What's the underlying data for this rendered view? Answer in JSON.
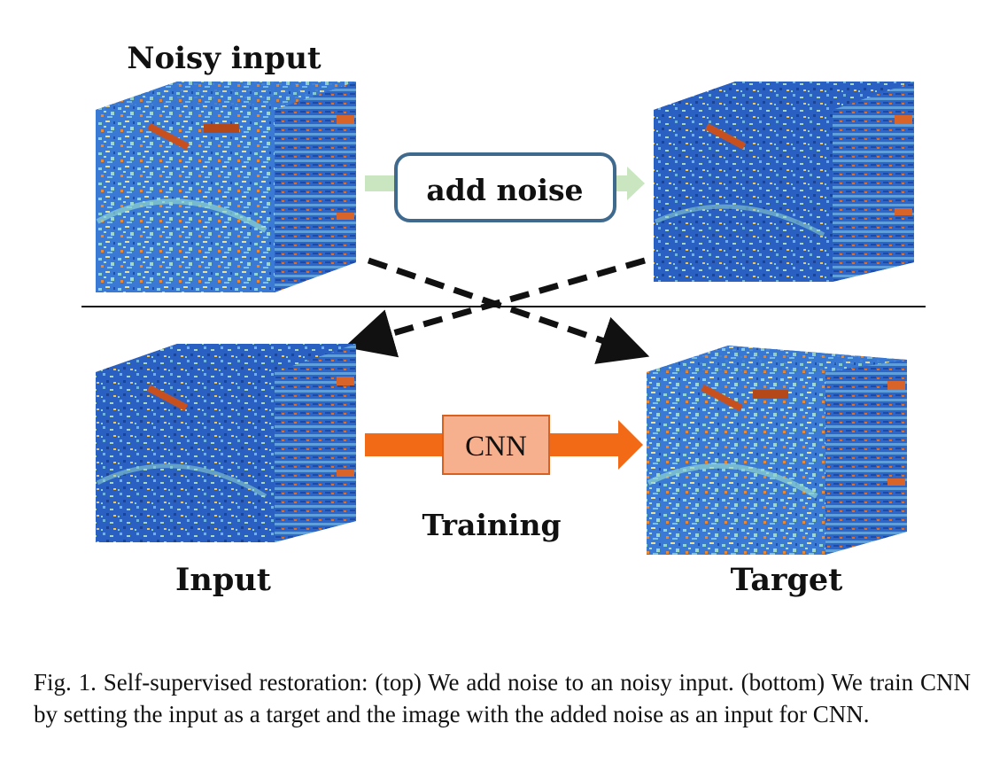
{
  "labels": {
    "noisy_input": "Noisy input",
    "add_noise": "add noise",
    "cnn": "CNN",
    "training": "Training",
    "input": "Input",
    "target": "Target"
  },
  "caption": "Fig. 1.  Self-supervised restoration: (top) We add noise to an noisy input. (bottom) We train CNN by setting the input as a target and the image with the added noise as an input for CNN.",
  "colors": {
    "cube_base": "#2f6fcf",
    "cube_light": "#8fd0c8",
    "cube_warm": "#d86a2a",
    "add_noise_border": "#3f6a8e",
    "add_noise_arrow": "#c9e6c0",
    "cnn_fill": "#f6b08e",
    "cnn_border": "#d9601e",
    "cnn_arrow": "#f36a16",
    "dashed_arrow": "#111111"
  }
}
